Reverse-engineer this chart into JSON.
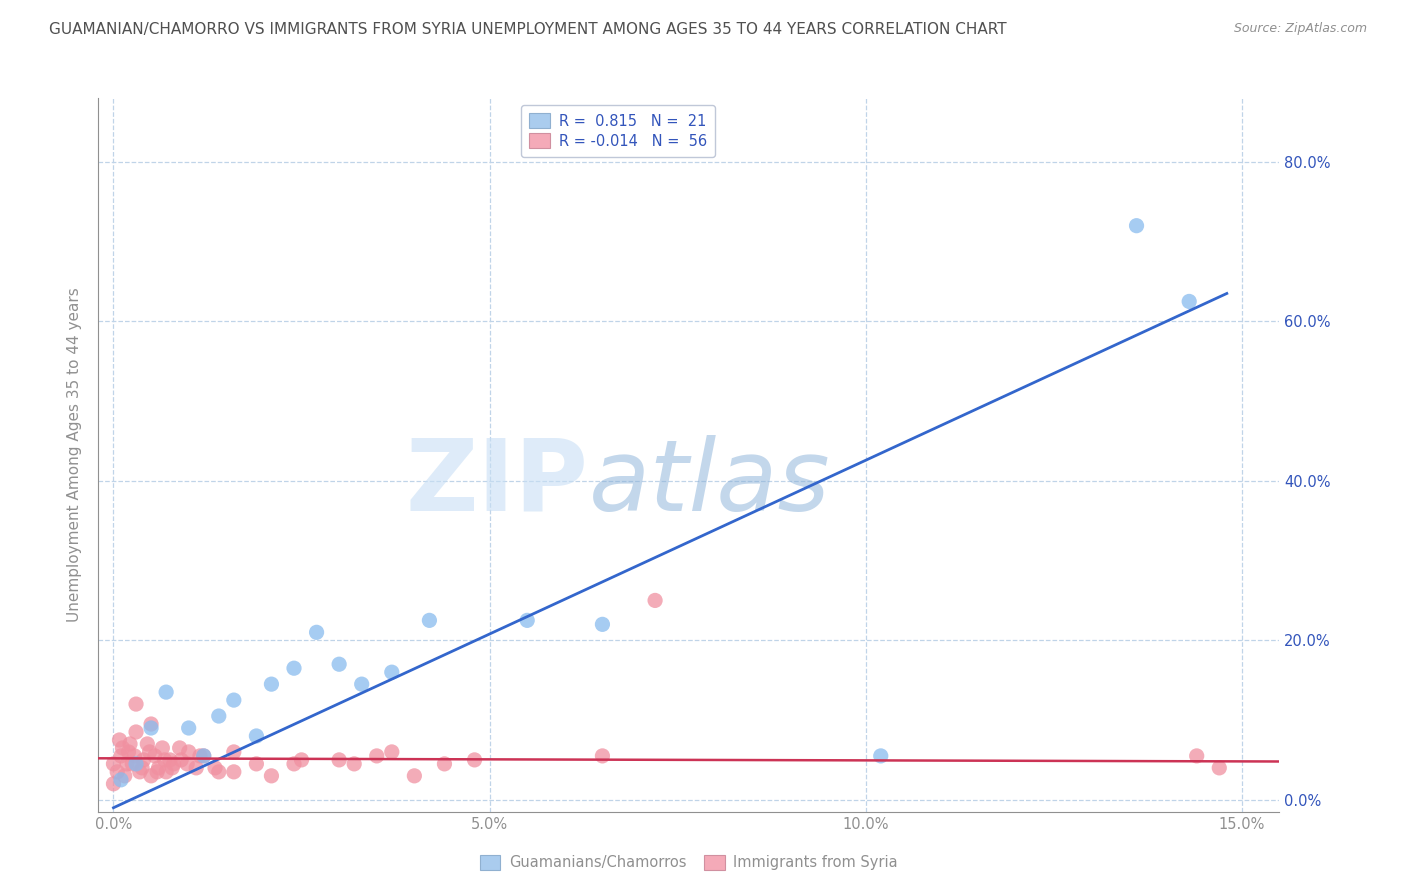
{
  "title": "GUAMANIAN/CHAMORRO VS IMMIGRANTS FROM SYRIA UNEMPLOYMENT AMONG AGES 35 TO 44 YEARS CORRELATION CHART",
  "source": "Source: ZipAtlas.com",
  "xlabel_values": [
    0.0,
    5.0,
    10.0,
    15.0
  ],
  "ylabel_values": [
    0.0,
    20.0,
    40.0,
    60.0,
    80.0
  ],
  "xlim": [
    -0.2,
    15.5
  ],
  "ylim": [
    -1.5,
    88.0
  ],
  "watermark_zip": "ZIP",
  "watermark_atlas": "atlas",
  "legend_R_label1": "R =  0.815   N =  21",
  "legend_R_label2": "R = -0.014   N =  56",
  "legend_bottom_label1": "Guamanians/Chamorros",
  "legend_bottom_label2": "Immigrants from Syria",
  "blue_scatter_x": [
    0.1,
    0.3,
    0.5,
    0.7,
    1.0,
    1.2,
    1.4,
    1.6,
    1.9,
    2.1,
    2.4,
    2.7,
    3.0,
    3.3,
    3.7,
    4.2,
    5.5,
    6.5,
    10.2,
    13.6,
    14.3
  ],
  "blue_scatter_y": [
    2.5,
    4.5,
    9.0,
    13.5,
    9.0,
    5.5,
    10.5,
    12.5,
    8.0,
    14.5,
    16.5,
    21.0,
    17.0,
    14.5,
    16.0,
    22.5,
    22.5,
    22.0,
    5.5,
    72.0,
    62.5
  ],
  "pink_scatter_x": [
    0.0,
    0.0,
    0.05,
    0.1,
    0.15,
    0.2,
    0.25,
    0.3,
    0.35,
    0.4,
    0.45,
    0.5,
    0.55,
    0.6,
    0.65,
    0.7,
    0.75,
    0.8,
    0.9,
    1.0,
    1.1,
    1.2,
    1.4,
    1.6,
    1.9,
    2.1,
    2.4,
    3.0,
    3.5,
    4.0,
    4.4,
    4.8,
    6.5,
    7.2,
    14.4,
    14.7,
    0.08,
    0.12,
    0.18,
    0.22,
    0.28,
    0.38,
    0.48,
    0.58,
    0.68,
    0.78,
    0.88,
    0.98,
    1.15,
    1.35,
    1.6,
    2.5,
    3.2,
    3.7,
    0.3,
    0.5
  ],
  "pink_scatter_y": [
    2.0,
    4.5,
    3.5,
    5.5,
    3.0,
    6.0,
    4.5,
    8.5,
    3.5,
    5.0,
    7.0,
    3.0,
    5.5,
    4.0,
    6.5,
    3.5,
    5.0,
    4.5,
    5.0,
    6.0,
    4.0,
    5.5,
    3.5,
    6.0,
    4.5,
    3.0,
    4.5,
    5.0,
    5.5,
    3.0,
    4.5,
    5.0,
    5.5,
    25.0,
    5.5,
    4.0,
    7.5,
    6.5,
    4.5,
    7.0,
    5.5,
    4.0,
    6.0,
    3.5,
    5.0,
    4.0,
    6.5,
    4.5,
    5.5,
    4.0,
    3.5,
    5.0,
    4.5,
    6.0,
    12.0,
    9.5
  ],
  "blue_line_x": [
    0.0,
    14.8
  ],
  "blue_line_y": [
    -1.0,
    63.5
  ],
  "pink_line_x": [
    -0.2,
    15.5
  ],
  "pink_line_y": [
    5.2,
    4.8
  ],
  "blue_line_color": "#3366cc",
  "pink_line_color": "#cc3355",
  "blue_scatter_color": "#88bbee",
  "pink_scatter_color": "#f090a0",
  "blue_patch_color": "#aaccee",
  "pink_patch_color": "#f4aab8",
  "bg_color": "#ffffff",
  "grid_color": "#c0d4e8",
  "title_color": "#505050",
  "axis_label_color": "#3355bb",
  "axis_tick_color": "#909090",
  "ylabel": "Unemployment Among Ages 35 to 44 years"
}
